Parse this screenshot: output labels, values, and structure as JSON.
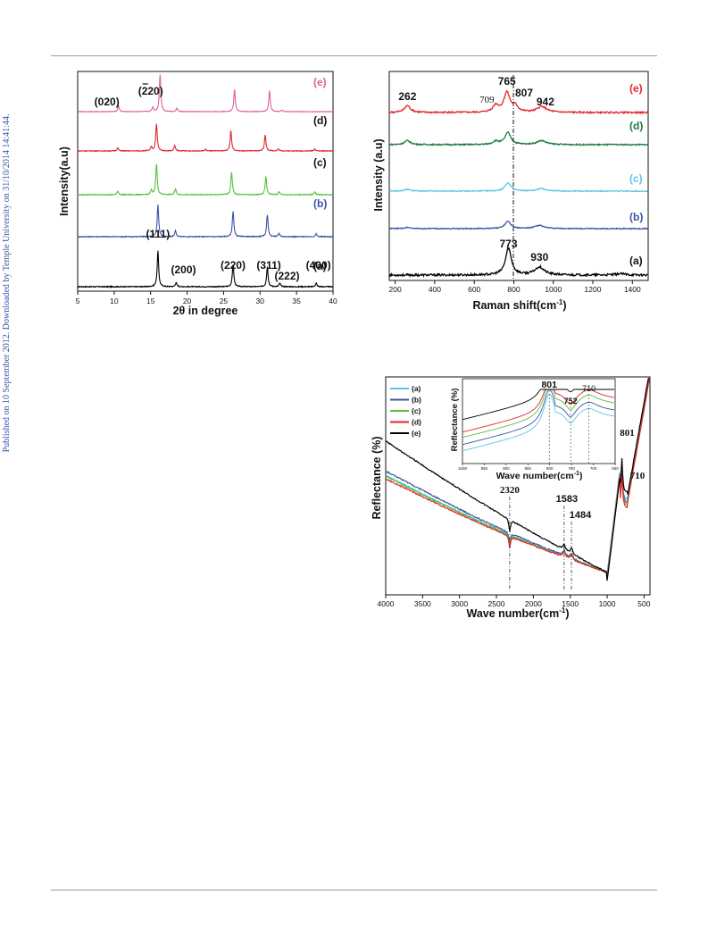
{
  "side_note": "Published on 10 September 2012. Downloaded by Temple University on 31/10/2014 14:41:44.",
  "chart_data": [
    {
      "type": "line",
      "id": "xrd",
      "xlabel": "2θ in degree",
      "ylabel": "Intensity(a.u)",
      "xlim": [
        5,
        40
      ],
      "xticks": [
        5,
        10,
        15,
        20,
        25,
        30,
        35,
        40
      ],
      "tick_labels": [
        "5",
        "10",
        "15",
        "20",
        "25",
        "30",
        "35",
        "40"
      ],
      "grid": false,
      "series": [
        {
          "name": "(a)",
          "color": "#000000",
          "peaks": [
            [
              16.0,
              1.0
            ],
            [
              18.5,
              0.12
            ],
            [
              26.3,
              0.62
            ],
            [
              31.0,
              0.55
            ],
            [
              32.7,
              0.1
            ],
            [
              37.7,
              0.1
            ]
          ]
        },
        {
          "name": "(b)",
          "color": "#3b54a3",
          "peaks": [
            [
              16.0,
              0.95
            ],
            [
              18.4,
              0.18
            ],
            [
              26.3,
              0.75
            ],
            [
              31.0,
              0.65
            ],
            [
              32.6,
              0.1
            ],
            [
              37.7,
              0.08
            ]
          ]
        },
        {
          "name": "(c)",
          "color": "#55c040",
          "peaks": [
            [
              10.5,
              0.12
            ],
            [
              15.1,
              0.15
            ],
            [
              15.8,
              1.0
            ],
            [
              18.4,
              0.2
            ],
            [
              26.1,
              0.75
            ],
            [
              30.8,
              0.6
            ],
            [
              32.6,
              0.1
            ],
            [
              37.5,
              0.1
            ]
          ]
        },
        {
          "name": "(d)",
          "color": "#e5262b",
          "peaks": [
            [
              10.5,
              0.12
            ],
            [
              15.1,
              0.15
            ],
            [
              15.8,
              1.0
            ],
            [
              18.3,
              0.2
            ],
            [
              22.5,
              0.06
            ],
            [
              26.0,
              0.75
            ],
            [
              30.7,
              0.6
            ],
            [
              32.5,
              0.08
            ],
            [
              37.5,
              0.08
            ]
          ]
        },
        {
          "name": "(e)",
          "color": "#e0609e",
          "peaks": [
            [
              10.6,
              0.25
            ],
            [
              15.3,
              0.2
            ],
            [
              16.3,
              1.6
            ],
            [
              18.6,
              0.15
            ],
            [
              26.5,
              0.95
            ],
            [
              31.3,
              0.9
            ],
            [
              33.0,
              0.06
            ]
          ]
        }
      ],
      "annotations": [
        {
          "text": "(111)",
          "x": 16.0
        },
        {
          "text": "(200)",
          "x": 19.5
        },
        {
          "text": "(220)",
          "x": 26.3
        },
        {
          "text": "(311)",
          "x": 31.2
        },
        {
          "text": "(222)",
          "x": 33.7
        },
        {
          "text": "(400)",
          "x": 38.0
        },
        {
          "text": "(020)",
          "x": 9.0
        },
        {
          "text": "(220)",
          "x": 15.0,
          "overbar": "2"
        }
      ]
    },
    {
      "type": "line",
      "id": "raman",
      "xlabel": "Raman shift(cm",
      "xlabel_sup": "-1",
      "xlabel_tail": ")",
      "ylabel": "Intensity (a.u)",
      "xlim": [
        170,
        1480
      ],
      "xticks": [
        200,
        400,
        600,
        800,
        1000,
        1200,
        1400
      ],
      "tick_labels": [
        "200",
        "400",
        "600",
        "800",
        "1000",
        "1200",
        "1400"
      ],
      "grid": false,
      "series": [
        {
          "name": "(a)",
          "color": "#000000",
          "peaks": [
            [
              773,
              1.0
            ],
            [
              930,
              0.3
            ],
            [
              1340,
              0.05
            ]
          ]
        },
        {
          "name": "(b)",
          "color": "#3b54a3",
          "peaks": [
            [
              262,
              0.1
            ],
            [
              770,
              0.6
            ],
            [
              930,
              0.25
            ]
          ]
        },
        {
          "name": "(c)",
          "color": "#5bc6e0",
          "peaks": [
            [
              262,
              0.15
            ],
            [
              770,
              0.65
            ],
            [
              940,
              0.2
            ]
          ]
        },
        {
          "name": "(d)",
          "color": "#1c7a40",
          "peaks": [
            [
              262,
              0.25
            ],
            [
              709,
              0.2
            ],
            [
              770,
              0.75
            ],
            [
              940,
              0.25
            ]
          ]
        },
        {
          "name": "(e)",
          "color": "#e5262b",
          "peaks": [
            [
              262,
              0.35
            ],
            [
              709,
              0.35
            ],
            [
              765,
              1.0
            ],
            [
              807,
              0.3
            ],
            [
              942,
              0.3
            ]
          ]
        }
      ],
      "annotations": [
        {
          "text": "262",
          "x": 262
        },
        {
          "text": "765",
          "x": 765
        },
        {
          "text": "709",
          "x": 709
        },
        {
          "text": "807",
          "x": 807
        },
        {
          "text": "942",
          "x": 942
        },
        {
          "text": "773",
          "x": 773
        },
        {
          "text": "930",
          "x": 930
        }
      ]
    },
    {
      "type": "line",
      "id": "ftir",
      "xlabel": "Wave number(cm",
      "xlabel_sup": "-1",
      "xlabel_tail": ")",
      "ylabel": "Reflectance (%)",
      "xlim": [
        4000,
        420
      ],
      "xticks": [
        4000,
        3500,
        3000,
        2500,
        2000,
        1500,
        1000,
        500
      ],
      "tick_labels": [
        "4000",
        "3500",
        "3000",
        "2500",
        "2000",
        "1500",
        "1000",
        "500"
      ],
      "grid": false,
      "legend_position": "top-left",
      "series": [
        {
          "name": "(a)",
          "color": "#5bc6e0"
        },
        {
          "name": "(b)",
          "color": "#3b54a3"
        },
        {
          "name": "(c)",
          "color": "#55c040"
        },
        {
          "name": "(d)",
          "color": "#e5262b"
        },
        {
          "name": "(e)",
          "color": "#000000"
        }
      ],
      "annotations": [
        {
          "text": "2320",
          "x": 2320
        },
        {
          "text": "1583",
          "x": 1583
        },
        {
          "text": "1484",
          "x": 1484
        },
        {
          "text": "801",
          "x": 801
        },
        {
          "text": "710",
          "x": 710
        }
      ],
      "inset": {
        "xlabel": "Wave number(cm",
        "xlabel_sup": "-1",
        "xlabel_tail": ")",
        "ylabel": "Reflectance (%)",
        "xlim": [
          1000,
          650
        ],
        "tick_labels": [
          "1000",
          "950",
          "900",
          "850",
          "800",
          "750",
          "700",
          "650"
        ],
        "annotations": [
          {
            "text": "801",
            "x": 801
          },
          {
            "text": "752",
            "x": 752
          },
          {
            "text": "710",
            "x": 710
          }
        ]
      }
    }
  ]
}
